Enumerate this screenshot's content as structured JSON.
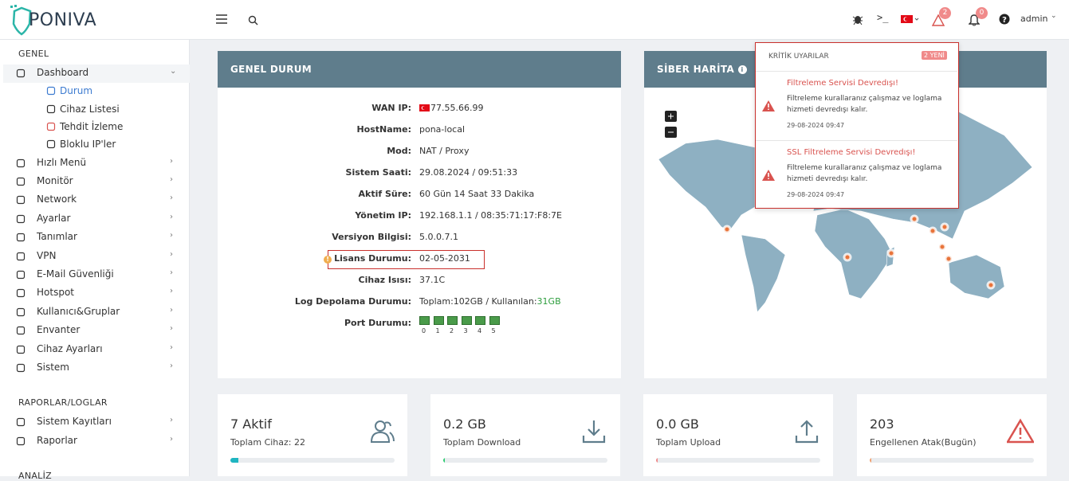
{
  "topbar": {
    "logo": "PONIVA",
    "user": "admin",
    "warning_count": 2,
    "notification_count": 0
  },
  "sidebar": {
    "sections": [
      {
        "title": "GENEL",
        "items": [
          {
            "label": "Dashboard",
            "children": [
              "Durum",
              "Cihaz Listesi",
              "Tehdit İzleme",
              "Bloklu IP'ler"
            ]
          },
          {
            "label": "Hızlı Menü"
          },
          {
            "label": "Monitör"
          },
          {
            "label": "Network"
          },
          {
            "label": "Ayarlar"
          },
          {
            "label": "Tanımlar"
          },
          {
            "label": "VPN"
          },
          {
            "label": "E-Mail Güvenliği"
          },
          {
            "label": "Hotspot"
          },
          {
            "label": "Kullanıcı&Gruplar"
          },
          {
            "label": "Envanter"
          },
          {
            "label": "Cihaz Ayarları"
          },
          {
            "label": "Sistem"
          }
        ]
      },
      {
        "title": "RAPORLAR/LOGLAR",
        "items": [
          {
            "label": "Sistem Kayıtları"
          },
          {
            "label": "Raporlar"
          }
        ]
      },
      {
        "title": "ANALİZ",
        "items": []
      }
    ]
  },
  "status_panel": {
    "title": "GENEL DURUM",
    "rows": [
      {
        "label": "WAN IP:",
        "value": "77.55.66.99"
      },
      {
        "label": "HostName:",
        "value": "pona-local"
      },
      {
        "label": "Mod:",
        "value": "NAT / Proxy"
      },
      {
        "label": "Sistem Saati:",
        "value": "29.08.2024 / 09:51:33"
      },
      {
        "label": "Aktif Süre:",
        "value": "60 Gün 14 Saat 33 Dakika"
      },
      {
        "label": "Yönetim IP:",
        "value": "192.168.1.1 / 08:35:71:17:F8:7E"
      },
      {
        "label": "Versiyon Bilgisi:",
        "value": "5.0.0.7.1"
      },
      {
        "label": "Lisans Durumu:",
        "value": "02-05-2031"
      },
      {
        "label": "Cihaz Isısı:",
        "value": "37.1C"
      },
      {
        "label": "Log Depolama Durumu:",
        "value": "Toplam:102GB / Kullanılan:",
        "value_highlight": "31GB"
      },
      {
        "label": "Port Durumu:",
        "ports": [
          0,
          1,
          2,
          3,
          4,
          5
        ]
      }
    ]
  },
  "map_panel": {
    "title": "SİBER HARİTA"
  },
  "alerts": {
    "title": "KRİTİK UYARILAR",
    "badge": "2 YENİ",
    "items": [
      {
        "title": "Filtreleme Servisi Devredışı!",
        "text": "Filtreleme kurallaranız çalışmaz ve loglama hizmeti devredışı kalır.",
        "date": "29-08-2024 09:47"
      },
      {
        "title": "SSL Filtreleme Servisi Devredışı!",
        "text": "Filtreleme kurallaranız çalışmaz ve loglama hizmeti devredışı kalır.",
        "date": "29-08-2024 09:47"
      }
    ]
  },
  "stats": [
    {
      "value": "7 Aktif",
      "label": "Toplam Cihaz: 22"
    },
    {
      "value": "0.2 GB",
      "label": "Toplam Download"
    },
    {
      "value": "0.0 GB",
      "label": "Toplam Upload"
    },
    {
      "value": "203",
      "label": "Engellenen Atak(Bugün)"
    }
  ]
}
